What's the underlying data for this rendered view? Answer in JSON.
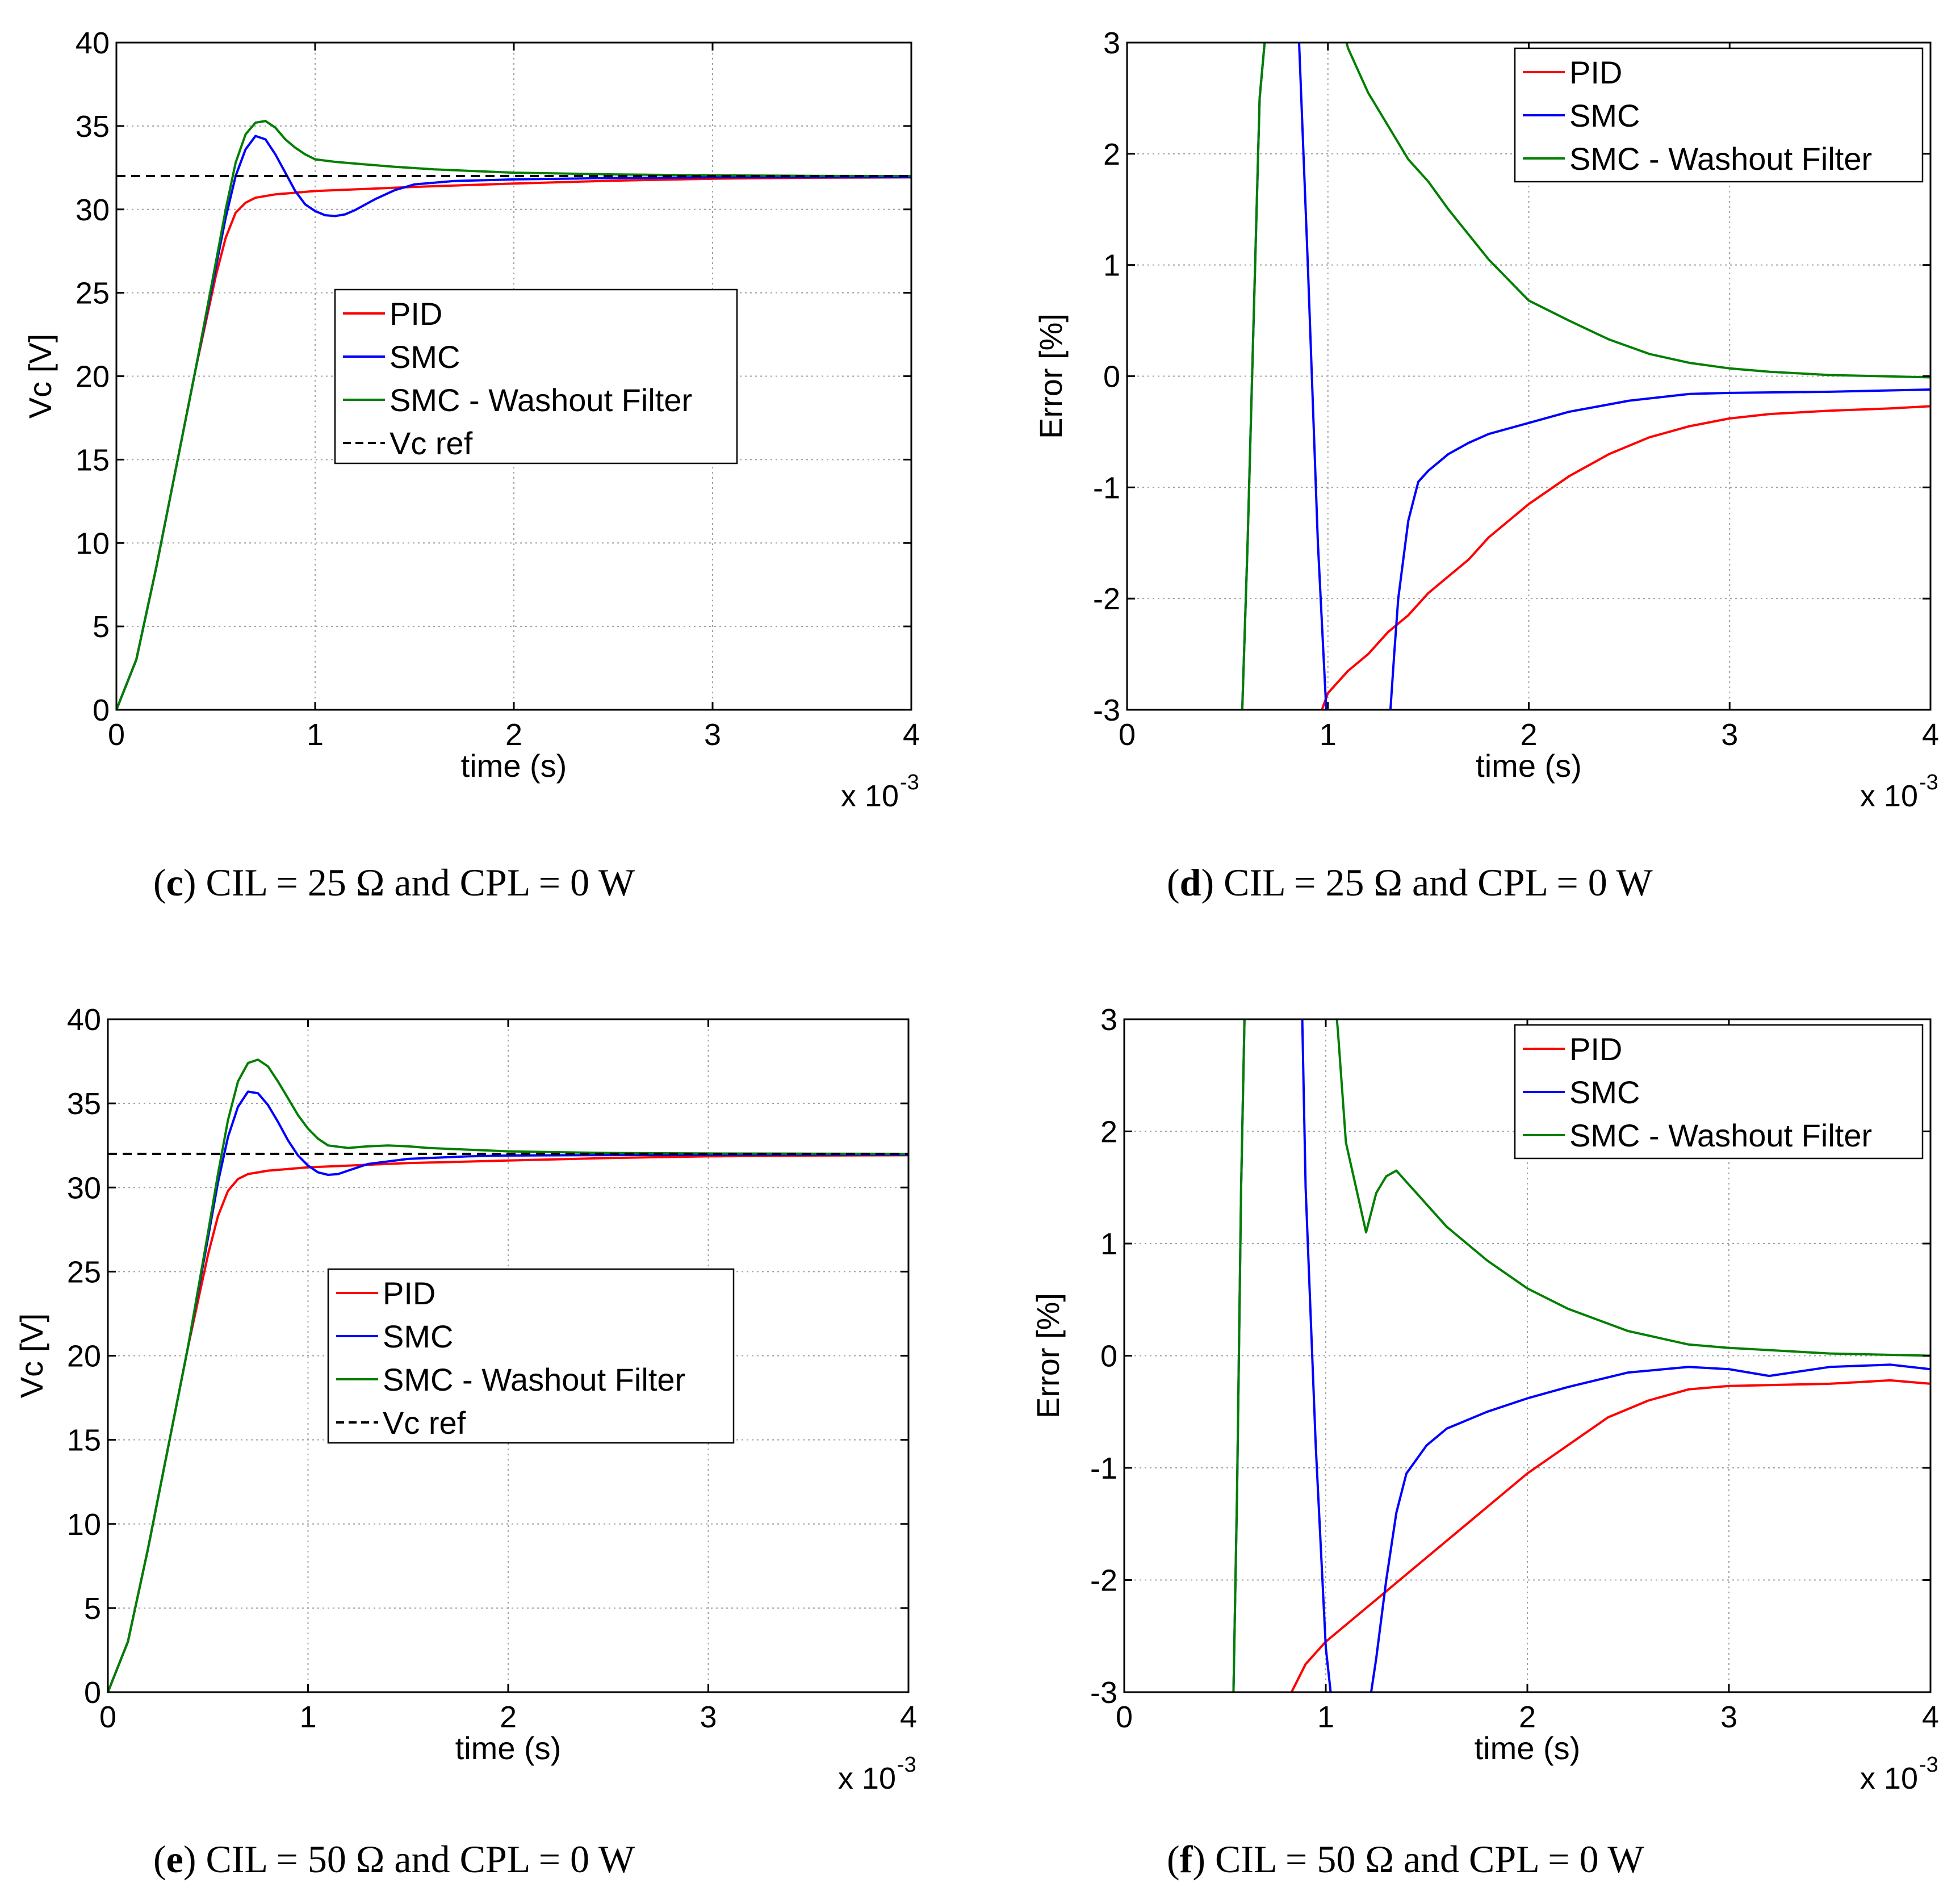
{
  "panels": [
    {
      "letter": "c",
      "caption": "CIL = 25 Ω and CPL = 0 W"
    },
    {
      "letter": "d",
      "caption": "CIL = 25 Ω and CPL = 0 W"
    },
    {
      "letter": "e",
      "caption": "CIL = 50 Ω and CPL = 0 W"
    },
    {
      "letter": "f",
      "caption": "CIL = 50 Ω and CPL = 0 W"
    }
  ],
  "chart_data": [
    {
      "id": "c",
      "type": "line",
      "title": "",
      "xlabel": "time (s)",
      "ylabel": "Vc [V]",
      "x_multiplier": "x 10",
      "x_multiplier_exp": "-3",
      "xlim": [
        0,
        4
      ],
      "ylim": [
        0,
        40
      ],
      "xticks": [
        0,
        1,
        2,
        3,
        4
      ],
      "yticks": [
        0,
        5,
        10,
        15,
        20,
        25,
        30,
        35,
        40
      ],
      "grid": true,
      "legend_position": "center",
      "series": [
        {
          "name": "PID",
          "color": "#ff0000",
          "style": "solid",
          "x": [
            0,
            0.1,
            0.2,
            0.3,
            0.4,
            0.5,
            0.55,
            0.6,
            0.65,
            0.7,
            0.8,
            0.9,
            1.0,
            1.2,
            1.5,
            2.0,
            2.5,
            3.0,
            3.5,
            4.0
          ],
          "y": [
            0,
            3,
            8.5,
            14.5,
            20.5,
            26,
            28.3,
            29.8,
            30.4,
            30.7,
            30.9,
            31.0,
            31.1,
            31.2,
            31.35,
            31.55,
            31.72,
            31.84,
            31.9,
            31.92
          ]
        },
        {
          "name": "SMC",
          "color": "#0000ff",
          "style": "solid",
          "x": [
            0,
            0.1,
            0.2,
            0.3,
            0.4,
            0.5,
            0.55,
            0.6,
            0.65,
            0.7,
            0.75,
            0.8,
            0.85,
            0.9,
            0.95,
            1.0,
            1.05,
            1.1,
            1.15,
            1.2,
            1.3,
            1.4,
            1.5,
            1.7,
            2.0,
            2.5,
            3.0,
            3.5,
            4.0
          ],
          "y": [
            0,
            3,
            8.5,
            14.5,
            20.5,
            26.5,
            29.5,
            32,
            33.6,
            34.4,
            34.2,
            33.3,
            32.2,
            31.1,
            30.3,
            29.9,
            29.65,
            29.6,
            29.7,
            29.95,
            30.6,
            31.15,
            31.5,
            31.7,
            31.8,
            31.88,
            31.92,
            31.93,
            31.93
          ]
        },
        {
          "name": "SMC - Washout Filter",
          "color": "#007f00",
          "style": "solid",
          "x": [
            0,
            0.1,
            0.2,
            0.3,
            0.4,
            0.5,
            0.55,
            0.6,
            0.65,
            0.7,
            0.75,
            0.8,
            0.85,
            0.9,
            0.95,
            1.0,
            1.1,
            1.2,
            1.4,
            1.6,
            1.8,
            2.0,
            2.5,
            3.0,
            3.5,
            4.0
          ],
          "y": [
            0,
            3,
            8.5,
            14.5,
            20.5,
            26.8,
            30,
            32.8,
            34.5,
            35.2,
            35.3,
            34.9,
            34.2,
            33.7,
            33.3,
            33.0,
            32.85,
            32.75,
            32.55,
            32.4,
            32.3,
            32.2,
            32.1,
            32.04,
            32.01,
            32.0
          ]
        },
        {
          "name": "Vc ref",
          "color": "#000000",
          "style": "dashed",
          "x": [
            0,
            4
          ],
          "y": [
            32,
            32
          ]
        }
      ]
    },
    {
      "id": "d",
      "type": "line",
      "title": "",
      "xlabel": "time (s)",
      "ylabel": "Error [%]",
      "x_multiplier": "x 10",
      "x_multiplier_exp": "-3",
      "xlim": [
        0,
        4
      ],
      "ylim": [
        -3,
        3
      ],
      "xticks": [
        0,
        1,
        2,
        3,
        4
      ],
      "yticks": [
        -3,
        -2,
        -1,
        0,
        1,
        2,
        3
      ],
      "grid": true,
      "legend_position": "top-right",
      "series": [
        {
          "name": "PID",
          "color": "#ff0000",
          "style": "solid",
          "x": [
            0.95,
            1.0,
            1.1,
            1.2,
            1.3,
            1.4,
            1.5,
            1.6,
            1.7,
            1.8,
            1.9,
            2.0,
            2.2,
            2.4,
            2.6,
            2.8,
            3.0,
            3.2,
            3.5,
            3.8,
            4.0
          ],
          "y": [
            -3.1,
            -2.85,
            -2.65,
            -2.5,
            -2.3,
            -2.15,
            -1.95,
            -1.8,
            -1.65,
            -1.45,
            -1.3,
            -1.15,
            -0.9,
            -0.7,
            -0.55,
            -0.45,
            -0.38,
            -0.34,
            -0.31,
            -0.29,
            -0.27
          ]
        },
        {
          "name": "SMC",
          "color": "#0000ff",
          "style": "solid",
          "x": [
            0.57,
            0.6,
            0.63,
            0.66,
            0.7,
            0.75,
            0.8,
            0.85,
            0.9,
            0.95,
            1.0,
            1.05,
            1.1,
            1.15,
            1.2,
            1.25,
            1.3,
            1.33,
            1.35,
            1.4,
            1.45,
            1.5,
            1.6,
            1.7,
            1.8,
            2.0,
            2.2,
            2.5,
            2.8,
            3.0,
            3.5,
            4.0
          ],
          "y": [
            -3.2,
            -1.5,
            0.5,
            2.5,
            3.3,
            3.3,
            3.3,
            3.3,
            1.0,
            -1.5,
            -3.3,
            -3.3,
            -3.3,
            -3.3,
            -3.3,
            -3.3,
            -3.3,
            -2.5,
            -2.0,
            -1.3,
            -0.95,
            -0.85,
            -0.7,
            -0.6,
            -0.52,
            -0.42,
            -0.32,
            -0.22,
            -0.16,
            -0.15,
            -0.14,
            -0.12
          ]
        },
        {
          "name": "SMC - Washout Filter",
          "color": "#007f00",
          "style": "solid",
          "x": [
            0.57,
            0.6,
            0.63,
            0.66,
            0.7,
            1.05,
            1.1,
            1.2,
            1.3,
            1.4,
            1.5,
            1.6,
            1.8,
            2.0,
            2.2,
            2.4,
            2.6,
            2.8,
            3.0,
            3.2,
            3.5,
            4.0
          ],
          "y": [
            -3.2,
            -1.5,
            0.5,
            2.5,
            3.3,
            3.3,
            2.95,
            2.55,
            2.25,
            1.95,
            1.75,
            1.5,
            1.05,
            0.68,
            0.5,
            0.33,
            0.2,
            0.12,
            0.07,
            0.04,
            0.01,
            -0.01
          ]
        }
      ]
    },
    {
      "id": "e",
      "type": "line",
      "title": "",
      "xlabel": "time (s)",
      "ylabel": "Vc [V]",
      "x_multiplier": "x 10",
      "x_multiplier_exp": "-3",
      "xlim": [
        0,
        4
      ],
      "ylim": [
        0,
        40
      ],
      "xticks": [
        0,
        1,
        2,
        3,
        4
      ],
      "yticks": [
        0,
        5,
        10,
        15,
        20,
        25,
        30,
        35,
        40
      ],
      "grid": true,
      "legend_position": "center",
      "series": [
        {
          "name": "PID",
          "color": "#ff0000",
          "style": "solid",
          "x": [
            0,
            0.1,
            0.2,
            0.3,
            0.4,
            0.5,
            0.55,
            0.6,
            0.65,
            0.7,
            0.8,
            0.9,
            1.0,
            1.2,
            1.5,
            2.0,
            2.5,
            3.0,
            3.5,
            4.0
          ],
          "y": [
            0,
            3,
            8.5,
            14.5,
            20.5,
            26,
            28.3,
            29.8,
            30.5,
            30.8,
            31.0,
            31.1,
            31.2,
            31.3,
            31.45,
            31.6,
            31.75,
            31.85,
            31.9,
            31.92
          ]
        },
        {
          "name": "SMC",
          "color": "#0000ff",
          "style": "solid",
          "x": [
            0,
            0.1,
            0.2,
            0.3,
            0.4,
            0.5,
            0.55,
            0.6,
            0.65,
            0.7,
            0.75,
            0.8,
            0.85,
            0.9,
            0.95,
            1.0,
            1.05,
            1.1,
            1.15,
            1.2,
            1.3,
            1.5,
            1.8,
            2.0,
            2.5,
            3.0,
            3.5,
            4.0
          ],
          "y": [
            0,
            3,
            8.5,
            14.5,
            20.5,
            27,
            30.3,
            33,
            34.8,
            35.7,
            35.6,
            34.9,
            33.9,
            32.8,
            31.9,
            31.3,
            30.9,
            30.75,
            30.8,
            31.0,
            31.4,
            31.7,
            31.85,
            31.9,
            31.93,
            31.94,
            31.95,
            31.95
          ]
        },
        {
          "name": "SMC - Washout Filter",
          "color": "#007f00",
          "style": "solid",
          "x": [
            0,
            0.1,
            0.2,
            0.3,
            0.4,
            0.5,
            0.55,
            0.6,
            0.65,
            0.7,
            0.75,
            0.8,
            0.85,
            0.9,
            0.95,
            1.0,
            1.05,
            1.1,
            1.2,
            1.3,
            1.4,
            1.5,
            1.6,
            1.8,
            2.0,
            2.5,
            3.0,
            3.5,
            4.0
          ],
          "y": [
            0,
            3,
            8.5,
            14.5,
            20.5,
            27.3,
            30.8,
            34,
            36.3,
            37.4,
            37.6,
            37.2,
            36.3,
            35.3,
            34.3,
            33.5,
            32.9,
            32.5,
            32.35,
            32.45,
            32.5,
            32.45,
            32.35,
            32.25,
            32.15,
            32.05,
            32.02,
            32.01,
            32.0
          ]
        },
        {
          "name": "Vc ref",
          "color": "#000000",
          "style": "dashed",
          "x": [
            0,
            4
          ],
          "y": [
            32,
            32
          ]
        }
      ]
    },
    {
      "id": "f",
      "type": "line",
      "title": "",
      "xlabel": "time (s)",
      "ylabel": "Error [%]",
      "x_multiplier": "x 10",
      "x_multiplier_exp": "-3",
      "xlim": [
        0,
        4
      ],
      "ylim": [
        -3,
        3
      ],
      "xticks": [
        0,
        1,
        2,
        3,
        4
      ],
      "yticks": [
        -3,
        -2,
        -1,
        0,
        1,
        2,
        3
      ],
      "grid": true,
      "legend_position": "top-right",
      "series": [
        {
          "name": "PID",
          "color": "#ff0000",
          "style": "solid",
          "x": [
            0.83,
            0.9,
            1.0,
            1.1,
            1.2,
            1.3,
            1.4,
            1.5,
            1.6,
            1.7,
            1.8,
            1.9,
            2.0,
            2.2,
            2.4,
            2.6,
            2.8,
            3.0,
            3.5,
            3.8,
            4.0
          ],
          "y": [
            -3.0,
            -2.75,
            -2.55,
            -2.4,
            -2.25,
            -2.1,
            -1.95,
            -1.8,
            -1.65,
            -1.5,
            -1.35,
            -1.2,
            -1.05,
            -0.8,
            -0.55,
            -0.4,
            -0.3,
            -0.27,
            -0.25,
            -0.22,
            -0.25
          ]
        },
        {
          "name": "SMC",
          "color": "#0000ff",
          "style": "solid",
          "x": [
            0.54,
            0.56,
            0.58,
            0.6,
            0.63,
            0.7,
            0.8,
            0.88,
            0.9,
            0.95,
            1.0,
            1.03,
            1.05,
            1.08,
            1.1,
            1.15,
            1.2,
            1.25,
            1.3,
            1.35,
            1.4,
            1.5,
            1.6,
            1.8,
            2.0,
            2.2,
            2.5,
            2.8,
            3.0,
            3.2,
            3.5,
            3.8,
            4.0
          ],
          "y": [
            -3.2,
            -1.2,
            1.5,
            3.3,
            3.3,
            3.3,
            3.3,
            3.3,
            1.5,
            -0.8,
            -2.6,
            -3.1,
            -3.3,
            -3.3,
            -3.3,
            -3.3,
            -3.3,
            -2.7,
            -2.0,
            -1.4,
            -1.05,
            -0.8,
            -0.65,
            -0.5,
            -0.38,
            -0.28,
            -0.15,
            -0.1,
            -0.12,
            -0.18,
            -0.1,
            -0.08,
            -0.12
          ]
        },
        {
          "name": "SMC - Washout Filter",
          "color": "#007f00",
          "style": "solid",
          "x": [
            0.54,
            0.56,
            0.58,
            0.6,
            0.63,
            0.7,
            1.04,
            1.06,
            1.1,
            1.15,
            1.2,
            1.25,
            1.3,
            1.35,
            1.4,
            1.45,
            1.5,
            1.6,
            1.8,
            2.0,
            2.2,
            2.5,
            2.8,
            3.0,
            3.5,
            4.0
          ],
          "y": [
            -3.2,
            -1.2,
            1.5,
            3.3,
            3.3,
            3.3,
            3.3,
            2.9,
            1.9,
            1.5,
            1.1,
            1.45,
            1.6,
            1.65,
            1.55,
            1.45,
            1.35,
            1.15,
            0.85,
            0.6,
            0.42,
            0.22,
            0.1,
            0.07,
            0.02,
            0.0
          ]
        }
      ]
    }
  ]
}
